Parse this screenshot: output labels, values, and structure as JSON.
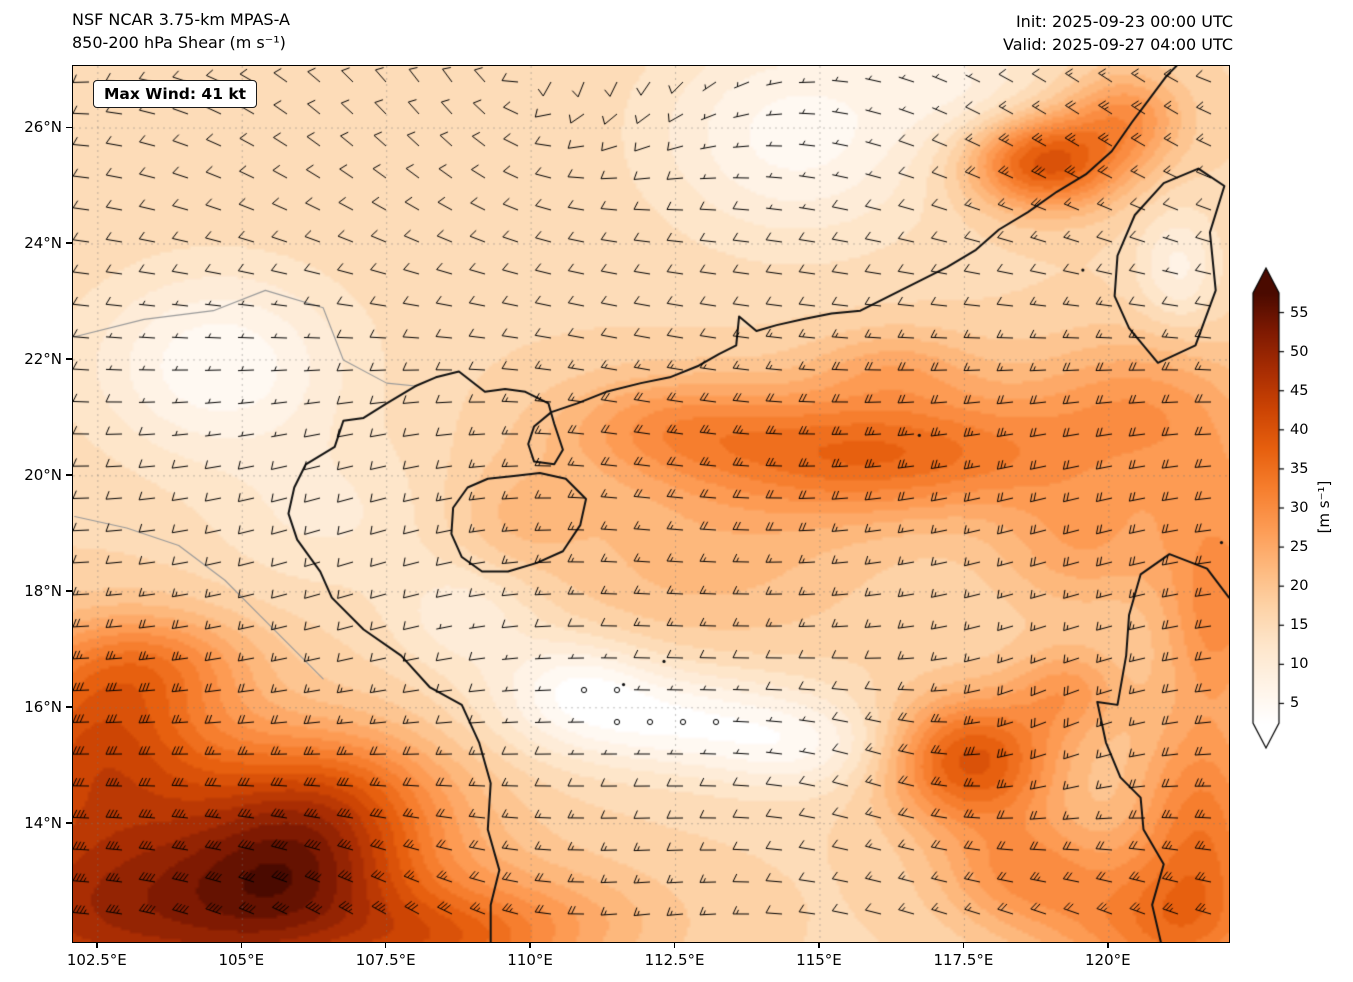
{
  "header": {
    "model_title": "NSF NCAR 3.75-km MPAS-A",
    "field_title": "850-200 hPa Shear (m s⁻¹)",
    "init_time": "Init: 2025-09-23 00:00 UTC",
    "valid_time": "Valid: 2025-09-27 04:00 UTC"
  },
  "map_overlay": {
    "max_wind_label": "Max Wind: 41 kt"
  },
  "axes": {
    "lat_ticks": [
      {
        "value": 26,
        "label": "26°N"
      },
      {
        "value": 24,
        "label": "24°N"
      },
      {
        "value": 22,
        "label": "22°N"
      },
      {
        "value": 20,
        "label": "20°N"
      },
      {
        "value": 18,
        "label": "18°N"
      },
      {
        "value": 16,
        "label": "16°N"
      },
      {
        "value": 14,
        "label": "14°N"
      }
    ],
    "lon_ticks": [
      {
        "value": 102.5,
        "label": "102.5°E"
      },
      {
        "value": 105,
        "label": "105°E"
      },
      {
        "value": 107.5,
        "label": "107.5°E"
      },
      {
        "value": 110,
        "label": "110°E"
      },
      {
        "value": 112.5,
        "label": "112.5°E"
      },
      {
        "value": 115,
        "label": "115°E"
      },
      {
        "value": 117.5,
        "label": "117.5°E"
      },
      {
        "value": 120,
        "label": "120°E"
      }
    ]
  },
  "colorbar": {
    "unit_label": "[m s⁻¹]",
    "vmin": 2.5,
    "vmax": 57.5,
    "tick_values": [
      55,
      50,
      45,
      40,
      35,
      30,
      25,
      20,
      15,
      10,
      5
    ],
    "stops": [
      {
        "t": 0.0,
        "color": "#ffffff"
      },
      {
        "t": 0.09,
        "color": "#fff3e6"
      },
      {
        "t": 0.18,
        "color": "#fee6cb"
      },
      {
        "t": 0.27,
        "color": "#fdd3a7"
      },
      {
        "t": 0.36,
        "color": "#fdb97e"
      },
      {
        "t": 0.45,
        "color": "#fd9c55"
      },
      {
        "t": 0.55,
        "color": "#f67d2c"
      },
      {
        "t": 0.64,
        "color": "#e65f0e"
      },
      {
        "t": 0.73,
        "color": "#cc4404"
      },
      {
        "t": 0.82,
        "color": "#a82d03"
      },
      {
        "t": 0.91,
        "color": "#7f1a02"
      },
      {
        "t": 1.0,
        "color": "#4a0a00"
      }
    ]
  },
  "chart_data": {
    "type": "heatmap",
    "title": "NSF NCAR 3.75-km MPAS-A — 850-200 hPa Shear (m s⁻¹)",
    "init": "2025-09-23 00:00 UTC",
    "valid": "2025-09-27 04:00 UTC",
    "max_wind_kt": 41,
    "units": "m s⁻¹",
    "extent": {
      "lon_min": 102.07,
      "lon_max": 122.08,
      "lat_min": 11.96,
      "lat_max": 27.07
    },
    "colorbar_range": [
      5,
      55
    ],
    "colorbar_step": 5,
    "grid": "dashed gray graticule at labeled lons/lats",
    "overlays": [
      "wind barbs (kt)",
      "coastlines",
      "country borders"
    ],
    "field_model": {
      "base": 16,
      "blobs": [
        [
          103.0,
          12.5,
          4.5,
          2.2,
          32
        ],
        [
          102.5,
          15.5,
          2.0,
          1.6,
          20
        ],
        [
          103.5,
          16.8,
          1.8,
          0.9,
          10
        ],
        [
          106.0,
          13.0,
          2.0,
          1.5,
          16
        ],
        [
          106.5,
          14.5,
          2.2,
          1.3,
          14
        ],
        [
          108.5,
          11.9,
          1.8,
          0.8,
          10
        ],
        [
          110.0,
          12.3,
          2.5,
          1.0,
          8
        ],
        [
          120.8,
          12.2,
          2.0,
          1.2,
          14
        ],
        [
          118.5,
          13.2,
          1.5,
          1.0,
          12
        ],
        [
          116.0,
          20.4,
          3.5,
          1.1,
          20
        ],
        [
          112.3,
          20.9,
          2.0,
          0.9,
          9
        ],
        [
          116.3,
          21.9,
          1.5,
          0.7,
          7
        ],
        [
          120.5,
          21.3,
          2.0,
          1.2,
          10
        ],
        [
          122.0,
          19.5,
          1.5,
          1.5,
          8
        ],
        [
          119.5,
          18.8,
          1.5,
          1.2,
          9
        ],
        [
          118.9,
          25.4,
          1.3,
          0.8,
          24
        ],
        [
          120.3,
          26.2,
          1.0,
          0.8,
          12
        ],
        [
          117.6,
          15.1,
          1.5,
          1.1,
          24
        ],
        [
          119.3,
          16.3,
          1.0,
          0.8,
          10
        ],
        [
          121.6,
          14.0,
          1.2,
          2.0,
          16
        ],
        [
          121.9,
          17.5,
          1.0,
          1.5,
          12
        ],
        [
          109.7,
          19.3,
          1.2,
          1.0,
          5
        ],
        [
          113.0,
          18.5,
          3.0,
          1.5,
          6
        ],
        [
          104.6,
          21.9,
          2.2,
          1.6,
          -12
        ],
        [
          106.5,
          19.3,
          2.0,
          1.3,
          -5
        ],
        [
          114.6,
          25.9,
          2.4,
          1.8,
          -11
        ],
        [
          117.5,
          26.8,
          1.5,
          1.0,
          -6
        ],
        [
          112.2,
          15.8,
          2.6,
          0.9,
          -12
        ],
        [
          114.8,
          15.3,
          1.8,
          0.8,
          -8
        ],
        [
          110.8,
          16.5,
          1.3,
          0.8,
          -8
        ],
        [
          108.9,
          17.6,
          1.3,
          1.0,
          -7
        ],
        [
          121.2,
          23.6,
          0.7,
          1.0,
          -8
        ]
      ]
    },
    "geography": {
      "china_coast": [
        [
          108.0,
          21.55
        ],
        [
          108.35,
          21.7
        ],
        [
          108.75,
          21.8
        ],
        [
          109.2,
          21.45
        ],
        [
          109.55,
          21.5
        ],
        [
          109.9,
          21.45
        ],
        [
          110.3,
          21.25
        ],
        [
          110.4,
          20.9
        ],
        [
          110.55,
          20.45
        ],
        [
          110.4,
          20.2
        ],
        [
          110.05,
          20.25
        ],
        [
          109.95,
          20.55
        ],
        [
          110.05,
          20.85
        ],
        [
          110.35,
          21.1
        ],
        [
          110.8,
          21.25
        ],
        [
          111.3,
          21.45
        ],
        [
          111.9,
          21.6
        ],
        [
          112.4,
          21.7
        ],
        [
          112.9,
          21.9
        ],
        [
          113.25,
          22.1
        ],
        [
          113.55,
          22.25
        ],
        [
          113.6,
          22.75
        ],
        [
          113.9,
          22.5
        ],
        [
          114.25,
          22.6
        ],
        [
          114.7,
          22.7
        ],
        [
          115.2,
          22.8
        ],
        [
          115.7,
          22.85
        ],
        [
          116.2,
          23.1
        ],
        [
          116.7,
          23.35
        ],
        [
          117.2,
          23.6
        ],
        [
          117.7,
          23.9
        ],
        [
          118.1,
          24.25
        ],
        [
          118.6,
          24.55
        ],
        [
          119.1,
          24.9
        ],
        [
          119.6,
          25.2
        ],
        [
          120.05,
          25.6
        ],
        [
          120.4,
          26.1
        ],
        [
          120.7,
          26.5
        ],
        [
          121.0,
          26.9
        ],
        [
          121.2,
          27.1
        ]
      ],
      "vietnam_coast": [
        [
          108.0,
          21.55
        ],
        [
          107.5,
          21.25
        ],
        [
          107.1,
          21.0
        ],
        [
          106.75,
          20.95
        ],
        [
          106.6,
          20.5
        ],
        [
          106.1,
          20.2
        ],
        [
          105.9,
          19.8
        ],
        [
          105.8,
          19.35
        ],
        [
          105.95,
          18.9
        ],
        [
          106.35,
          18.35
        ],
        [
          106.55,
          17.9
        ],
        [
          107.1,
          17.35
        ],
        [
          107.75,
          16.9
        ],
        [
          108.25,
          16.35
        ],
        [
          108.8,
          16.05
        ],
        [
          109.1,
          15.4
        ],
        [
          109.3,
          14.7
        ],
        [
          109.25,
          13.9
        ],
        [
          109.45,
          13.2
        ],
        [
          109.3,
          12.6
        ],
        [
          109.3,
          11.96
        ]
      ],
      "hainan": [
        [
          109.25,
          19.95
        ],
        [
          109.7,
          20.0
        ],
        [
          110.15,
          20.05
        ],
        [
          110.6,
          19.95
        ],
        [
          110.95,
          19.6
        ],
        [
          110.85,
          19.15
        ],
        [
          110.55,
          18.7
        ],
        [
          110.1,
          18.5
        ],
        [
          109.6,
          18.35
        ],
        [
          109.15,
          18.35
        ],
        [
          108.8,
          18.6
        ],
        [
          108.62,
          19.0
        ],
        [
          108.65,
          19.45
        ],
        [
          108.9,
          19.8
        ],
        [
          109.25,
          19.95
        ]
      ],
      "taiwan": [
        [
          120.1,
          23.1
        ],
        [
          120.35,
          22.55
        ],
        [
          120.85,
          21.95
        ],
        [
          121.5,
          22.25
        ],
        [
          121.85,
          23.2
        ],
        [
          121.75,
          24.2
        ],
        [
          122.0,
          25.0
        ],
        [
          121.55,
          25.3
        ],
        [
          120.95,
          25.05
        ],
        [
          120.45,
          24.5
        ],
        [
          120.15,
          23.8
        ],
        [
          120.1,
          23.1
        ]
      ],
      "luzon": [
        [
          120.9,
          11.96
        ],
        [
          120.75,
          12.6
        ],
        [
          120.95,
          13.3
        ],
        [
          120.6,
          13.9
        ],
        [
          120.55,
          14.45
        ],
        [
          120.2,
          14.8
        ],
        [
          119.95,
          15.4
        ],
        [
          119.8,
          16.1
        ],
        [
          120.15,
          16.05
        ],
        [
          120.3,
          16.9
        ],
        [
          120.35,
          17.6
        ],
        [
          120.55,
          18.3
        ],
        [
          121.05,
          18.65
        ],
        [
          121.7,
          18.4
        ],
        [
          122.08,
          17.9
        ]
      ],
      "borders": [
        [
          [
            102.1,
            22.4
          ],
          [
            103.3,
            22.7
          ],
          [
            104.5,
            22.85
          ],
          [
            105.4,
            23.2
          ],
          [
            106.4,
            22.9
          ],
          [
            106.75,
            22.0
          ],
          [
            107.5,
            21.6
          ],
          [
            108.0,
            21.55
          ]
        ],
        [
          [
            102.1,
            19.3
          ],
          [
            103.0,
            19.1
          ],
          [
            103.9,
            18.8
          ],
          [
            104.7,
            18.2
          ],
          [
            105.3,
            17.6
          ],
          [
            105.9,
            17.0
          ],
          [
            106.4,
            16.5
          ]
        ]
      ],
      "small_islands": [
        [
          112.3,
          16.8
        ],
        [
          111.6,
          16.4
        ],
        [
          116.72,
          20.7
        ],
        [
          119.55,
          23.55
        ],
        [
          121.95,
          18.85
        ]
      ]
    }
  }
}
